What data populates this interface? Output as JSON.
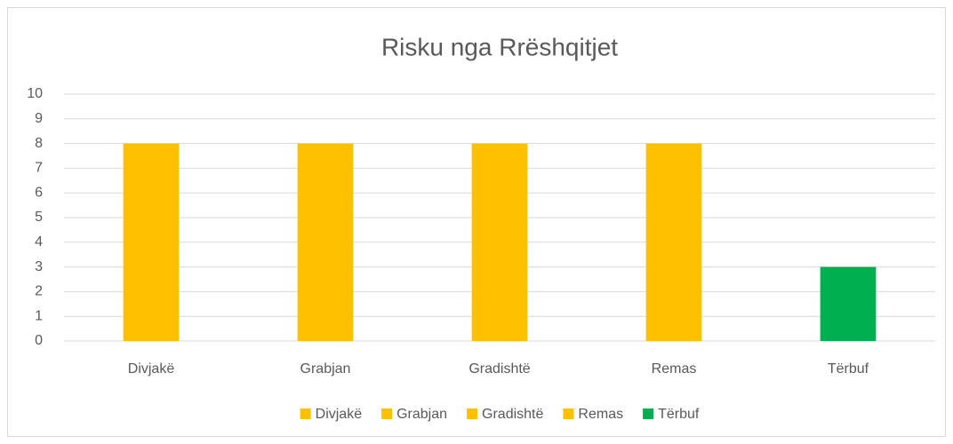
{
  "chart_data": {
    "type": "bar",
    "title": "Risku nga Rrëshqitjet",
    "categories": [
      "Divjakë",
      "Grabjan",
      "Gradishtë",
      "Remas",
      "Tërbuf"
    ],
    "values": [
      8,
      8,
      8,
      8,
      3
    ],
    "colors": [
      "#ffc000",
      "#ffc000",
      "#ffc000",
      "#ffc000",
      "#00b050"
    ],
    "ylim": [
      0,
      10
    ],
    "yticks": [
      0,
      1,
      2,
      3,
      4,
      5,
      6,
      7,
      8,
      9,
      10
    ],
    "grid": true,
    "legend": "bottom"
  }
}
